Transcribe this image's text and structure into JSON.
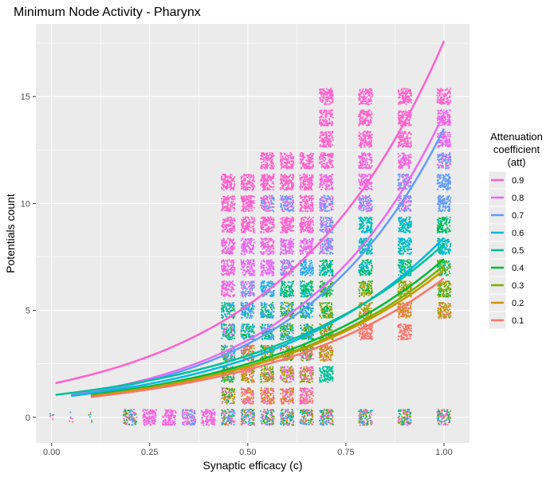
{
  "chart_data": {
    "type": "scatter",
    "title": "Minimum Node Activity - Pharynx",
    "xlabel": "Synaptic efficacy (c)",
    "ylabel": "Potentials count",
    "xlim": [
      -0.04,
      1.065
    ],
    "ylim": [
      -1.2,
      18.4
    ],
    "x_ticks": [
      0.0,
      0.25,
      0.5,
      0.75,
      1.0
    ],
    "x_tick_labels": [
      "0.00",
      "0.25",
      "0.50",
      "0.75",
      "1.00"
    ],
    "y_ticks": [
      0,
      5,
      10,
      15
    ],
    "y_tick_labels": [
      "0",
      "5",
      "10",
      "15"
    ],
    "grid": true,
    "legend": {
      "title": "Attenuation coefficient (att)",
      "title_lines": [
        "Attenuation",
        "coefficient",
        "(att)"
      ],
      "placement": "right"
    },
    "series": [
      {
        "name": "0.9",
        "color": "#ff61cc",
        "fit_x": [
          0.01,
          1.0
        ],
        "fit_y": [
          1.6,
          17.6
        ]
      },
      {
        "name": "0.8",
        "color": "#e76bf3",
        "fit_x": [
          0.05,
          1.0
        ],
        "fit_y": [
          1.05,
          14.2
        ]
      },
      {
        "name": "0.7",
        "color": "#619cff",
        "fit_x": [
          0.05,
          1.0
        ],
        "fit_y": [
          1.0,
          13.5
        ]
      },
      {
        "name": "0.6",
        "color": "#00b8e7",
        "fit_x": [
          0.05,
          1.0
        ],
        "fit_y": [
          1.0,
          8.4
        ]
      },
      {
        "name": "0.5",
        "color": "#00c19a",
        "fit_x": [
          0.01,
          1.0
        ],
        "fit_y": [
          1.05,
          8.1
        ]
      },
      {
        "name": "0.4",
        "color": "#00ba38",
        "fit_x": [
          0.1,
          1.0
        ],
        "fit_y": [
          1.05,
          7.4
        ]
      },
      {
        "name": "0.3",
        "color": "#7cae00",
        "fit_x": [
          0.1,
          1.0
        ],
        "fit_y": [
          1.0,
          7.1
        ]
      },
      {
        "name": "0.2",
        "color": "#cd9600",
        "fit_x": [
          0.1,
          1.0
        ],
        "fit_y": [
          1.0,
          6.9
        ]
      },
      {
        "name": "0.1",
        "color": "#f8766d",
        "fit_x": [
          0.1,
          1.0
        ],
        "fit_y": [
          0.95,
          6.5
        ]
      }
    ],
    "point_clusters": [
      {
        "x": 0.0,
        "y": 0,
        "series": [
          "0.5",
          "0.9"
        ]
      },
      {
        "x": 0.05,
        "y": 0,
        "series": [
          "0.7",
          "0.8",
          "0.1"
        ]
      },
      {
        "x": 0.1,
        "y": 0,
        "series": [
          "0.1",
          "0.2",
          "0.3",
          "0.6"
        ]
      },
      {
        "x": 0.2,
        "y": 0,
        "series": [
          "0.1",
          "0.2",
          "0.3",
          "0.4",
          "0.5",
          "0.6",
          "0.7",
          "0.8",
          "0.9"
        ]
      },
      {
        "x": 0.25,
        "y": 0,
        "series": [
          "0.8",
          "0.9"
        ]
      },
      {
        "x": 0.3,
        "y": 0,
        "series": [
          "0.8",
          "0.9"
        ]
      },
      {
        "x": 0.35,
        "y": 0,
        "series": [
          "0.7",
          "0.8",
          "0.9"
        ]
      },
      {
        "x": 0.4,
        "y": 0,
        "series": [
          "0.8",
          "0.9"
        ]
      },
      {
        "x": 0.45,
        "y": 0,
        "series": [
          "0.1",
          "0.2",
          "0.3",
          "0.4",
          "0.5",
          "0.6",
          "0.7",
          "0.8",
          "0.9"
        ]
      },
      {
        "x": 0.5,
        "y": 0,
        "series": [
          "0.1",
          "0.2",
          "0.3",
          "0.4",
          "0.5",
          "0.6",
          "0.7",
          "0.8",
          "0.9"
        ]
      },
      {
        "x": 0.55,
        "y": 0,
        "series": [
          "0.1",
          "0.2",
          "0.3",
          "0.4",
          "0.5",
          "0.6",
          "0.7",
          "0.8",
          "0.9"
        ]
      },
      {
        "x": 0.6,
        "y": 0,
        "series": [
          "0.1",
          "0.2",
          "0.3",
          "0.4",
          "0.5",
          "0.6",
          "0.7",
          "0.8",
          "0.9"
        ]
      },
      {
        "x": 0.65,
        "y": 0,
        "series": [
          "0.1",
          "0.2",
          "0.3",
          "0.4",
          "0.5",
          "0.6",
          "0.7",
          "0.8",
          "0.9"
        ]
      },
      {
        "x": 0.7,
        "y": 0,
        "series": [
          "0.1",
          "0.2",
          "0.3",
          "0.4",
          "0.5",
          "0.6",
          "0.7",
          "0.8",
          "0.9"
        ]
      },
      {
        "x": 0.8,
        "y": 0,
        "series": [
          "0.1",
          "0.2",
          "0.3",
          "0.4",
          "0.5",
          "0.6",
          "0.7",
          "0.8",
          "0.9"
        ]
      },
      {
        "x": 0.9,
        "y": 0,
        "series": [
          "0.1",
          "0.2",
          "0.3",
          "0.4",
          "0.5",
          "0.6",
          "0.7",
          "0.8",
          "0.9"
        ]
      },
      {
        "x": 1.0,
        "y": 0,
        "series": [
          "0.1",
          "0.2",
          "0.3",
          "0.4",
          "0.5",
          "0.6",
          "0.7",
          "0.8",
          "0.9"
        ]
      },
      {
        "x": 0.45,
        "y": 1,
        "series": [
          "0.2",
          "0.3",
          "0.4",
          "0.8"
        ]
      },
      {
        "x": 0.5,
        "y": 1,
        "series": [
          "0.1",
          "0.2",
          "0.9"
        ]
      },
      {
        "x": 0.55,
        "y": 1,
        "series": [
          "0.1",
          "0.2",
          "0.9"
        ]
      },
      {
        "x": 0.6,
        "y": 1,
        "series": [
          "0.1",
          "0.2",
          "0.9"
        ]
      },
      {
        "x": 0.65,
        "y": 1,
        "series": [
          "0.1",
          "0.9"
        ]
      },
      {
        "x": 0.45,
        "y": 2,
        "series": [
          "0.3",
          "0.4",
          "0.5",
          "0.8"
        ]
      },
      {
        "x": 0.5,
        "y": 2,
        "series": [
          "0.1",
          "0.2",
          "0.3",
          "0.9"
        ]
      },
      {
        "x": 0.55,
        "y": 2,
        "series": [
          "0.2",
          "0.3",
          "0.4",
          "0.9"
        ]
      },
      {
        "x": 0.6,
        "y": 2,
        "series": [
          "0.2",
          "0.3",
          "0.8",
          "0.9"
        ]
      },
      {
        "x": 0.65,
        "y": 2,
        "series": [
          "0.1",
          "0.3",
          "0.9"
        ]
      },
      {
        "x": 0.7,
        "y": 2,
        "series": [
          "0.5"
        ]
      },
      {
        "x": 0.45,
        "y": 3,
        "series": [
          "0.3",
          "0.4",
          "0.5",
          "0.6",
          "0.7",
          "0.8"
        ]
      },
      {
        "x": 0.5,
        "y": 3,
        "series": [
          "0.1",
          "0.2",
          "0.3",
          "0.4",
          "0.9"
        ]
      },
      {
        "x": 0.55,
        "y": 3,
        "series": [
          "0.2",
          "0.3",
          "0.4",
          "0.8"
        ]
      },
      {
        "x": 0.6,
        "y": 3,
        "series": [
          "0.2",
          "0.3",
          "0.4",
          "0.8"
        ]
      },
      {
        "x": 0.65,
        "y": 3,
        "series": [
          "0.1",
          "0.3",
          "0.4",
          "0.8"
        ]
      },
      {
        "x": 0.7,
        "y": 3,
        "series": [
          "0.1",
          "0.2",
          "0.3"
        ]
      },
      {
        "x": 0.45,
        "y": 4,
        "series": [
          "0.4",
          "0.5",
          "0.6",
          "0.8"
        ]
      },
      {
        "x": 0.5,
        "y": 4,
        "series": [
          "0.4",
          "0.5",
          "0.6",
          "0.7"
        ]
      },
      {
        "x": 0.55,
        "y": 4,
        "series": [
          "0.4",
          "0.5",
          "0.6",
          "0.7"
        ]
      },
      {
        "x": 0.6,
        "y": 4,
        "series": [
          "0.3",
          "0.4",
          "0.5",
          "0.7"
        ]
      },
      {
        "x": 0.65,
        "y": 4,
        "series": [
          "0.3",
          "0.4",
          "0.6",
          "0.7"
        ]
      },
      {
        "x": 0.7,
        "y": 4,
        "series": [
          "0.1",
          "0.2",
          "0.3",
          "0.4"
        ]
      },
      {
        "x": 0.8,
        "y": 4,
        "series": [
          "0.1"
        ]
      },
      {
        "x": 0.9,
        "y": 4,
        "series": [
          "0.1"
        ]
      },
      {
        "x": 0.45,
        "y": 5,
        "series": [
          "0.4",
          "0.5",
          "0.6",
          "0.7"
        ]
      },
      {
        "x": 0.5,
        "y": 5,
        "series": [
          "0.5",
          "0.6",
          "0.7"
        ]
      },
      {
        "x": 0.55,
        "y": 5,
        "series": [
          "0.4",
          "0.5",
          "0.6",
          "0.7"
        ]
      },
      {
        "x": 0.6,
        "y": 5,
        "series": [
          "0.3",
          "0.4",
          "0.6",
          "0.7"
        ]
      },
      {
        "x": 0.65,
        "y": 5,
        "series": [
          "0.4",
          "0.6",
          "0.7"
        ]
      },
      {
        "x": 0.7,
        "y": 5,
        "series": [
          "0.2",
          "0.3",
          "0.4",
          "0.5"
        ]
      },
      {
        "x": 0.8,
        "y": 5,
        "series": [
          "0.1",
          "0.2",
          "0.3"
        ]
      },
      {
        "x": 0.9,
        "y": 5,
        "series": [
          "0.1",
          "0.2"
        ]
      },
      {
        "x": 1.0,
        "y": 5,
        "series": [
          "0.1",
          "0.2",
          "0.3"
        ]
      },
      {
        "x": 0.45,
        "y": 6,
        "series": [
          "0.8",
          "0.9"
        ]
      },
      {
        "x": 0.5,
        "y": 6,
        "series": [
          "0.7",
          "0.8"
        ]
      },
      {
        "x": 0.55,
        "y": 6,
        "series": [
          "0.6",
          "0.7"
        ]
      },
      {
        "x": 0.6,
        "y": 6,
        "series": [
          "0.4",
          "0.5",
          "0.6"
        ]
      },
      {
        "x": 0.65,
        "y": 6,
        "series": [
          "0.4",
          "0.5",
          "0.6"
        ]
      },
      {
        "x": 0.7,
        "y": 6,
        "series": [
          "0.3",
          "0.4",
          "0.5"
        ]
      },
      {
        "x": 0.8,
        "y": 6,
        "series": [
          "0.2",
          "0.3",
          "0.4"
        ]
      },
      {
        "x": 0.9,
        "y": 6,
        "series": [
          "0.2",
          "0.3"
        ]
      },
      {
        "x": 1.0,
        "y": 6,
        "series": [
          "0.2",
          "0.3",
          "0.4"
        ]
      },
      {
        "x": 0.45,
        "y": 7,
        "series": [
          "0.8",
          "0.9"
        ]
      },
      {
        "x": 0.5,
        "y": 7,
        "series": [
          "0.8"
        ]
      },
      {
        "x": 0.55,
        "y": 7,
        "series": [
          "0.8"
        ]
      },
      {
        "x": 0.6,
        "y": 7,
        "series": [
          "0.7",
          "0.8"
        ]
      },
      {
        "x": 0.65,
        "y": 7,
        "series": [
          "0.6",
          "0.7"
        ]
      },
      {
        "x": 0.7,
        "y": 7,
        "series": [
          "0.4",
          "0.5",
          "0.6"
        ]
      },
      {
        "x": 0.8,
        "y": 7,
        "series": [
          "0.4",
          "0.5",
          "0.6"
        ]
      },
      {
        "x": 0.9,
        "y": 7,
        "series": [
          "0.4",
          "0.5",
          "0.6"
        ]
      },
      {
        "x": 1.0,
        "y": 7,
        "series": [
          "0.3",
          "0.4",
          "0.5"
        ]
      },
      {
        "x": 0.45,
        "y": 8,
        "series": [
          "0.8",
          "0.9"
        ]
      },
      {
        "x": 0.5,
        "y": 8,
        "series": [
          "0.8"
        ]
      },
      {
        "x": 0.55,
        "y": 8,
        "series": [
          "0.8",
          "0.9"
        ]
      },
      {
        "x": 0.6,
        "y": 8,
        "series": [
          "0.8"
        ]
      },
      {
        "x": 0.65,
        "y": 8,
        "series": [
          "0.8"
        ]
      },
      {
        "x": 0.7,
        "y": 8,
        "series": [
          "0.7",
          "0.8"
        ]
      },
      {
        "x": 0.8,
        "y": 8,
        "series": [
          "0.5",
          "0.6"
        ]
      },
      {
        "x": 0.9,
        "y": 8,
        "series": [
          "0.5",
          "0.6"
        ]
      },
      {
        "x": 1.0,
        "y": 8,
        "series": [
          "0.5",
          "0.6"
        ]
      },
      {
        "x": 0.45,
        "y": 9,
        "series": [
          "0.9"
        ]
      },
      {
        "x": 0.5,
        "y": 9,
        "series": [
          "0.9"
        ]
      },
      {
        "x": 0.55,
        "y": 9,
        "series": [
          "0.9"
        ]
      },
      {
        "x": 0.6,
        "y": 9,
        "series": [
          "0.9"
        ]
      },
      {
        "x": 0.65,
        "y": 9,
        "series": [
          "0.9"
        ]
      },
      {
        "x": 0.7,
        "y": 9,
        "series": [
          "0.7",
          "0.8"
        ]
      },
      {
        "x": 0.8,
        "y": 9,
        "series": [
          "0.5",
          "0.6"
        ]
      },
      {
        "x": 0.9,
        "y": 9,
        "series": [
          "0.5",
          "0.6"
        ]
      },
      {
        "x": 1.0,
        "y": 9,
        "series": [
          "0.4",
          "0.5"
        ]
      },
      {
        "x": 0.45,
        "y": 10,
        "series": [
          "0.9"
        ]
      },
      {
        "x": 0.5,
        "y": 10,
        "series": [
          "0.9"
        ]
      },
      {
        "x": 0.55,
        "y": 10,
        "series": [
          "0.7",
          "0.9"
        ]
      },
      {
        "x": 0.6,
        "y": 10,
        "series": [
          "0.7",
          "0.8"
        ]
      },
      {
        "x": 0.65,
        "y": 10,
        "series": [
          "0.9"
        ]
      },
      {
        "x": 0.7,
        "y": 10,
        "series": [
          "0.7",
          "0.8"
        ]
      },
      {
        "x": 0.8,
        "y": 10,
        "series": [
          "0.7",
          "0.8"
        ]
      },
      {
        "x": 0.9,
        "y": 10,
        "series": [
          "0.7",
          "0.8"
        ]
      },
      {
        "x": 1.0,
        "y": 10,
        "series": [
          "0.7"
        ]
      },
      {
        "x": 0.45,
        "y": 11,
        "series": [
          "0.9"
        ]
      },
      {
        "x": 0.5,
        "y": 11,
        "series": [
          "0.9"
        ]
      },
      {
        "x": 0.55,
        "y": 11,
        "series": [
          "0.9"
        ]
      },
      {
        "x": 0.6,
        "y": 11,
        "series": [
          "0.9"
        ]
      },
      {
        "x": 0.65,
        "y": 11,
        "series": [
          "0.9"
        ]
      },
      {
        "x": 0.7,
        "y": 11,
        "series": [
          "0.8",
          "0.9"
        ]
      },
      {
        "x": 0.8,
        "y": 11,
        "series": [
          "0.8",
          "0.9"
        ]
      },
      {
        "x": 0.9,
        "y": 11,
        "series": [
          "0.7",
          "0.8"
        ]
      },
      {
        "x": 1.0,
        "y": 11,
        "series": [
          "0.7"
        ]
      },
      {
        "x": 0.55,
        "y": 12,
        "series": [
          "0.9"
        ]
      },
      {
        "x": 0.6,
        "y": 12,
        "series": [
          "0.9"
        ]
      },
      {
        "x": 0.65,
        "y": 12,
        "series": [
          "0.9"
        ]
      },
      {
        "x": 0.7,
        "y": 12,
        "series": [
          "0.9"
        ]
      },
      {
        "x": 0.8,
        "y": 12,
        "series": [
          "0.8",
          "0.9"
        ]
      },
      {
        "x": 0.9,
        "y": 12,
        "series": [
          "0.8",
          "0.9"
        ]
      },
      {
        "x": 1.0,
        "y": 12,
        "series": [
          "0.7",
          "0.8"
        ]
      },
      {
        "x": 0.7,
        "y": 13,
        "series": [
          "0.9"
        ]
      },
      {
        "x": 0.8,
        "y": 13,
        "series": [
          "0.9"
        ]
      },
      {
        "x": 0.9,
        "y": 13,
        "series": [
          "0.9"
        ]
      },
      {
        "x": 1.0,
        "y": 13,
        "series": [
          "0.8"
        ]
      },
      {
        "x": 0.7,
        "y": 14,
        "series": [
          "0.9"
        ]
      },
      {
        "x": 0.8,
        "y": 14,
        "series": [
          "0.9"
        ]
      },
      {
        "x": 0.9,
        "y": 14,
        "series": [
          "0.9"
        ]
      },
      {
        "x": 1.0,
        "y": 14,
        "series": [
          "0.8",
          "0.9"
        ]
      },
      {
        "x": 0.7,
        "y": 15,
        "series": [
          "0.9"
        ]
      },
      {
        "x": 0.8,
        "y": 15,
        "series": [
          "0.9"
        ]
      },
      {
        "x": 0.9,
        "y": 15,
        "series": [
          "0.9"
        ]
      },
      {
        "x": 1.0,
        "y": 15,
        "series": [
          "0.9"
        ]
      }
    ]
  }
}
